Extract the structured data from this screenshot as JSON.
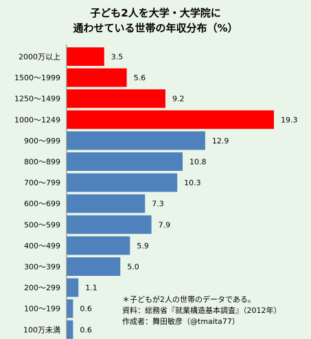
{
  "chart_data": {
    "type": "bar",
    "orientation": "horizontal",
    "title_lines": [
      "子ども2人を大学・大学院に",
      "通わせている世帯の年収分布（%）"
    ],
    "categories": [
      "2000万以上",
      "1500～1999",
      "1250～1499",
      "1000～1249",
      "900～999",
      "800～899",
      "700～799",
      "600～699",
      "500～599",
      "400～499",
      "300～399",
      "200～299",
      "100～199",
      "100万未満"
    ],
    "values": [
      3.5,
      5.6,
      9.2,
      19.3,
      12.9,
      10.8,
      10.3,
      7.3,
      7.9,
      5.9,
      5.0,
      1.1,
      0.6,
      0.6
    ],
    "value_labels": [
      "3.5",
      "5.6",
      "9.2",
      "19.3",
      "12.9",
      "10.8",
      "10.3",
      "7.3",
      "7.9",
      "5.9",
      "5.0",
      "1.1",
      "0.6",
      "0.6"
    ],
    "colors": [
      "#ff0000",
      "#ff0000",
      "#ff0000",
      "#ff0000",
      "#4f81bd",
      "#4f81bd",
      "#4f81bd",
      "#4f81bd",
      "#4f81bd",
      "#4f81bd",
      "#4f81bd",
      "#4f81bd",
      "#4f81bd",
      "#4f81bd"
    ],
    "xlim": [
      0,
      19.3
    ],
    "grid": false,
    "notes": [
      "＊子どもが2人の世帯のデータである。",
      "資料：総務省『就業構造基本調査』（2012年）",
      "作成者：舞田敏彦（@tmaita77）"
    ]
  },
  "colors": {
    "background": "#eaf5ea",
    "highlight": "#ff0000",
    "default": "#4f81bd"
  }
}
